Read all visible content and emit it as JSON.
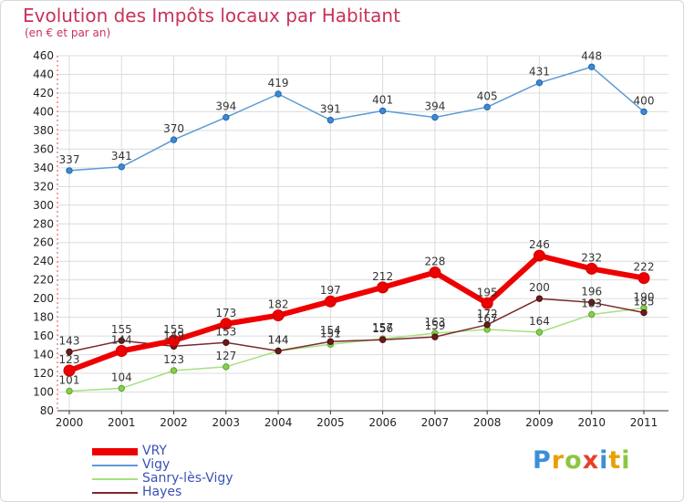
{
  "chart_data": {
    "type": "line",
    "title": "Evolution des Impôts locaux par Habitant",
    "subtitle": "(en € et par an)",
    "xlabel": "",
    "ylabel": "",
    "x": [
      "2000",
      "2001",
      "2002",
      "2003",
      "2004",
      "2005",
      "2006",
      "2007",
      "2008",
      "2009",
      "2010",
      "2011"
    ],
    "ylim": [
      80,
      460
    ],
    "yticks": [
      80,
      100,
      120,
      140,
      160,
      180,
      200,
      220,
      240,
      260,
      280,
      300,
      320,
      340,
      360,
      380,
      400,
      420,
      440,
      460
    ],
    "grid": true,
    "legend_position": "bottom-left",
    "series": [
      {
        "name": "VRY",
        "color": "#ee0000",
        "values": [
          123,
          144,
          155,
          173,
          182,
          197,
          212,
          228,
          195,
          246,
          232,
          222
        ],
        "labels": [
          "123",
          "144",
          "155",
          "173",
          "182",
          "197",
          "212",
          "228",
          "195",
          "246",
          "232",
          "222"
        ]
      },
      {
        "name": "Vigy",
        "color": "#5b9bd5",
        "values": [
          337,
          341,
          370,
          394,
          419,
          391,
          401,
          394,
          405,
          431,
          448,
          400
        ],
        "labels": [
          "337",
          "341",
          "370",
          "394",
          "419",
          "391",
          "401",
          "394",
          "405",
          "431",
          "448",
          "400"
        ]
      },
      {
        "name": "Sanry-lès-Vigy",
        "color": "#a8e080",
        "values": [
          101,
          104,
          123,
          127,
          144,
          151,
          157,
          163,
          167,
          164,
          183,
          190
        ],
        "labels": [
          "101",
          "104",
          "123",
          "127",
          "144",
          "151",
          "157",
          "163",
          "167",
          "164",
          "183",
          "190"
        ]
      },
      {
        "name": "Hayes",
        "color": "#7a2a2a",
        "values": [
          143,
          155,
          149,
          153,
          144,
          154,
          156,
          159,
          172,
          200,
          196,
          185
        ],
        "labels": [
          "143",
          "155",
          "149",
          "153",
          "144",
          "154",
          "156",
          "159",
          "172",
          "200",
          "196",
          "185"
        ]
      }
    ]
  },
  "brand": {
    "letters": [
      "P",
      "r",
      "o",
      "x",
      "i",
      "t",
      "i"
    ],
    "colors": [
      "#3b8fd8",
      "#e8a000",
      "#8dc63f",
      "#e8402a",
      "#3b8fd8",
      "#e8a000",
      "#8dc63f"
    ]
  }
}
